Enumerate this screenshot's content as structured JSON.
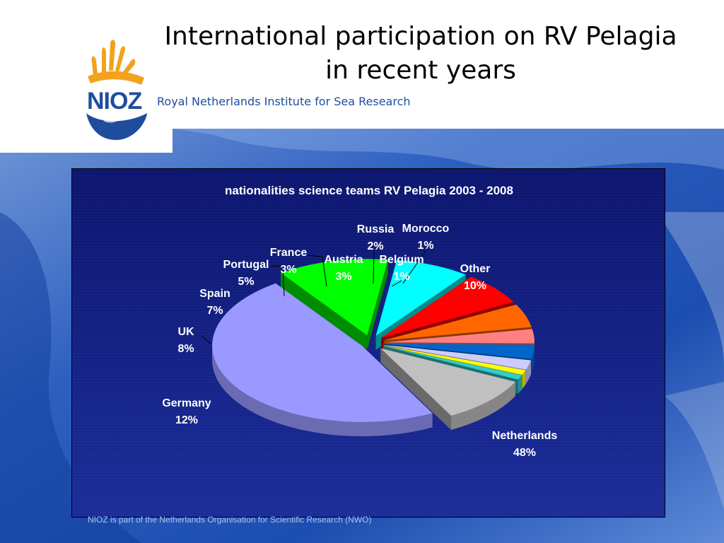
{
  "slide": {
    "title_line1": "International participation on RV Pelagia",
    "title_line2": "in recent years",
    "subtitle": "Royal Netherlands Institute for Sea Research",
    "logo_text": "NIOZ",
    "footer": "NIOZ is part of the Netherlands Organisation for Scientific Research (NWO)"
  },
  "colors": {
    "panel_top": "#0d166f",
    "panel_bottom": "#1b2d9a",
    "logo_orange": "#f2a21d",
    "logo_blue": "#1f4d9e"
  },
  "chart_data": {
    "type": "pie",
    "title": "nationalities science teams RV Pelagia 2003 - 2008",
    "slices": [
      {
        "label": "Netherlands",
        "percent_label": "48%",
        "value": 48,
        "color": "#9999ff"
      },
      {
        "label": "Germany",
        "percent_label": "12%",
        "value": 12,
        "color": "#00ff00"
      },
      {
        "label": "UK",
        "percent_label": "8%",
        "value": 8,
        "color": "#00ffff"
      },
      {
        "label": "Spain",
        "percent_label": "7%",
        "value": 7,
        "color": "#ff0000"
      },
      {
        "label": "Portugal",
        "percent_label": "5%",
        "value": 5,
        "color": "#ff6600"
      },
      {
        "label": "France",
        "percent_label": "3%",
        "value": 3,
        "color": "#ff8080"
      },
      {
        "label": "Austria",
        "percent_label": "3%",
        "value": 3,
        "color": "#0066cc"
      },
      {
        "label": "Russia",
        "percent_label": "2%",
        "value": 2,
        "color": "#ccccff"
      },
      {
        "label": "Morocco",
        "percent_label": "1%",
        "value": 1,
        "color": "#ffff00"
      },
      {
        "label": "Belgium",
        "percent_label": "1%",
        "value": 1,
        "color": "#33cccc"
      },
      {
        "label": "Other",
        "percent_label": "10%",
        "value": 10,
        "color": "#c0c0c0"
      }
    ],
    "exploded": true,
    "three_d": true
  }
}
